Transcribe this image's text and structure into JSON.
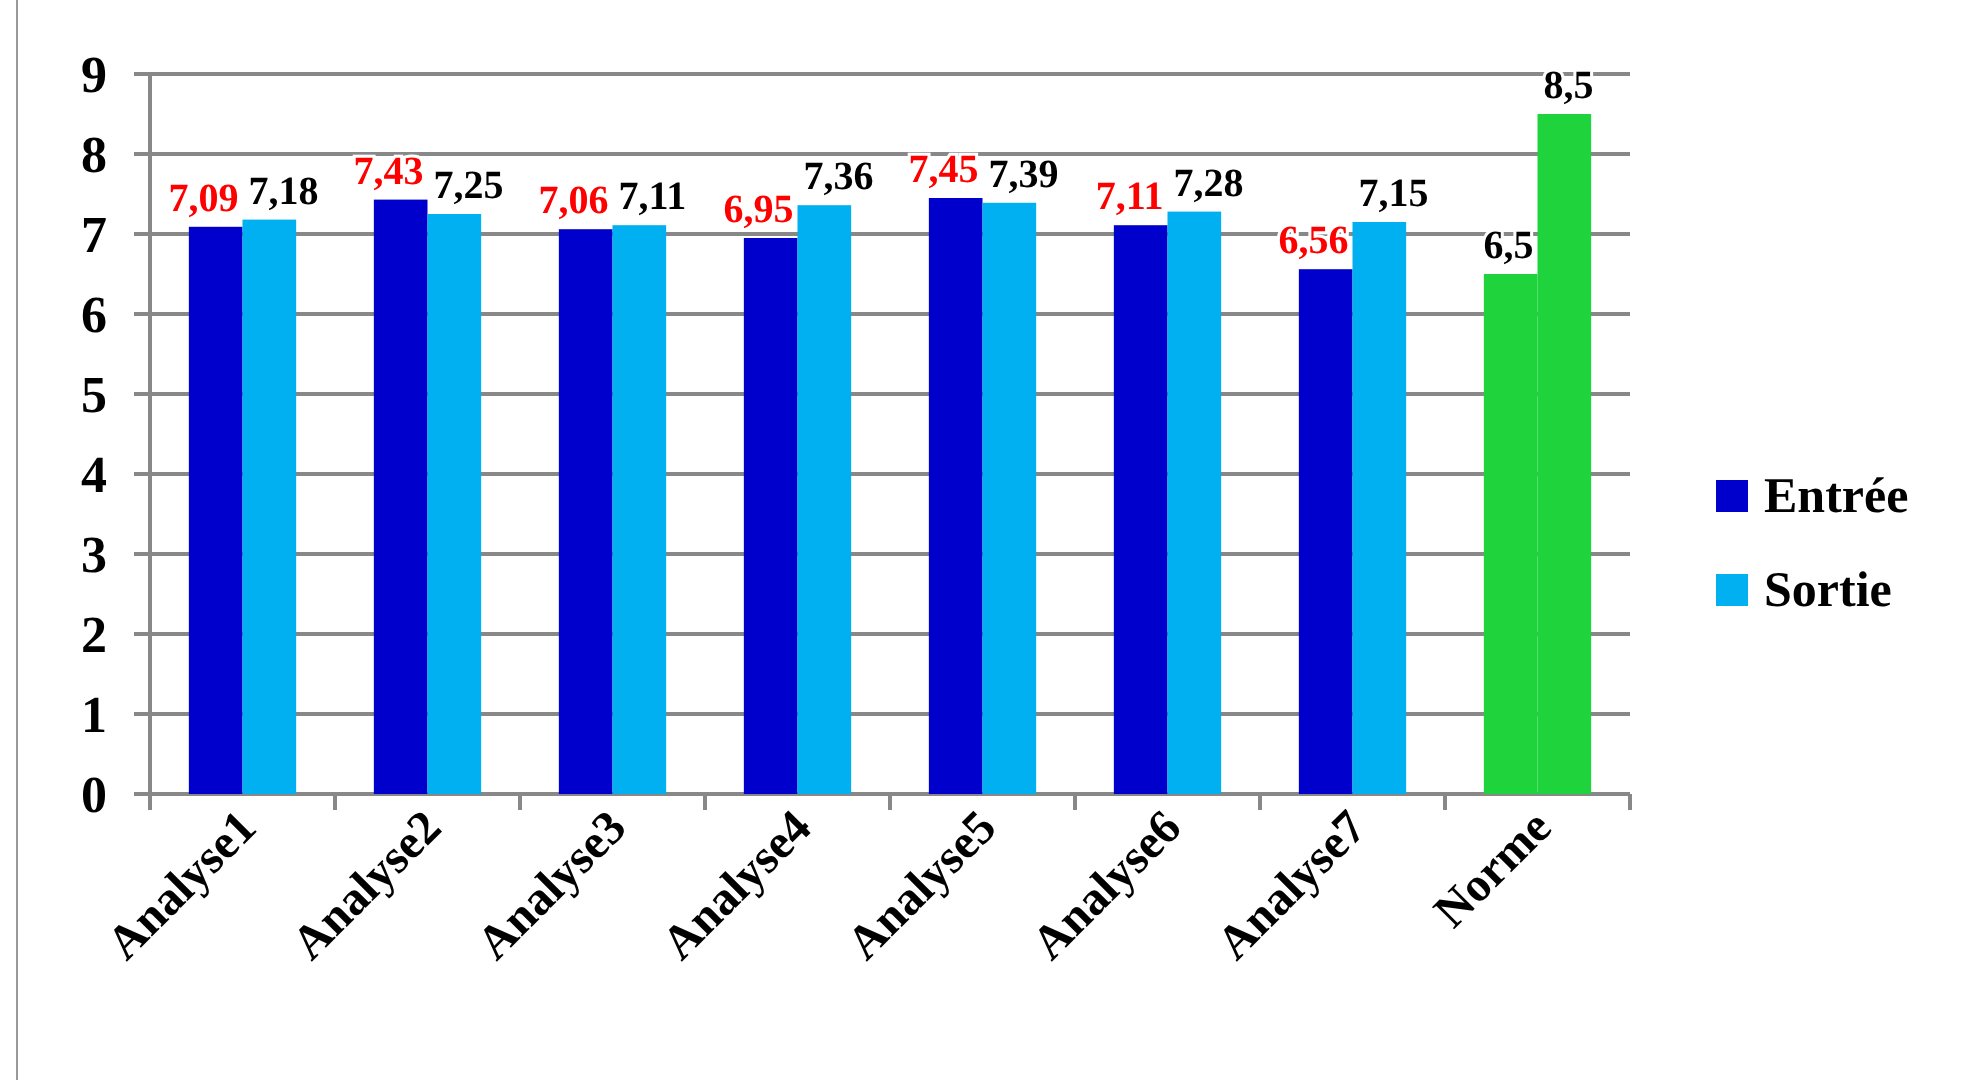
{
  "chart_data": {
    "type": "bar",
    "categories": [
      "Analyse1",
      "Analyse2",
      "Analyse3",
      "Analyse4",
      "Analyse5",
      "Analyse6",
      "Analyse7",
      "Norme"
    ],
    "series": [
      {
        "name": "Entrée",
        "color": "#0000cc",
        "colors": [
          "#0000cc",
          "#0000cc",
          "#0000cc",
          "#0000cc",
          "#0000cc",
          "#0000cc",
          "#0000cc",
          "#1ed33c"
        ],
        "values": [
          7.09,
          7.43,
          7.06,
          6.95,
          7.45,
          7.11,
          6.56,
          6.5
        ],
        "value_labels": [
          "7,09",
          "7,43",
          "7,06",
          "6,95",
          "7,45",
          "7,11",
          "6,56",
          "6,5"
        ]
      },
      {
        "name": "Sortie",
        "color": "#00b0f0",
        "colors": [
          "#00b0f0",
          "#00b0f0",
          "#00b0f0",
          "#00b0f0",
          "#00b0f0",
          "#00b0f0",
          "#00b0f0",
          "#1ed33c"
        ],
        "values": [
          7.18,
          7.25,
          7.11,
          7.36,
          7.39,
          7.28,
          7.15,
          8.5
        ],
        "value_labels": [
          "7,18",
          "7,25",
          "7,11",
          "7,36",
          "7,39",
          "7,28",
          "7,15",
          "8,5"
        ]
      }
    ],
    "ylim": [
      0,
      9
    ],
    "yticks": [
      0,
      1,
      2,
      3,
      4,
      5,
      6,
      7,
      8,
      9
    ],
    "grid": "y",
    "legend": "right"
  }
}
